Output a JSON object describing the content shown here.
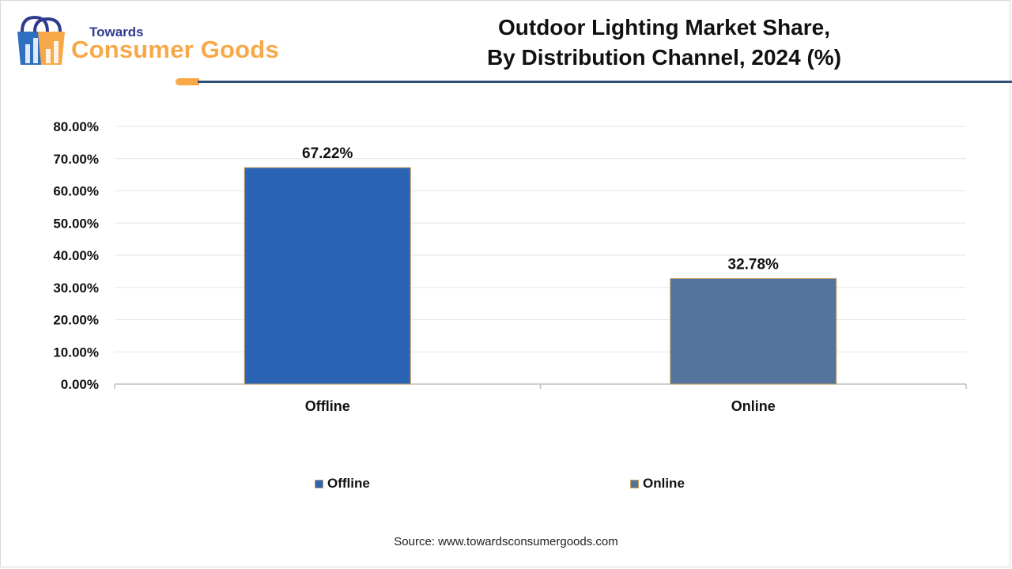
{
  "brand": {
    "line1": "Towards",
    "line2": "Consumer Goods"
  },
  "title": {
    "line1": "Outdoor Lighting Market Share,",
    "line2": "By Distribution Channel, 2024 (%)"
  },
  "source": "Source: www.towardsconsumergoods.com",
  "colors": {
    "offline": "#2b63b5",
    "online": "#54739d",
    "accent": "#f7a94a",
    "rule": "#2f4f73"
  },
  "chart_data": {
    "type": "bar",
    "categories": [
      "Offline",
      "Online"
    ],
    "values": [
      67.22,
      32.78
    ],
    "data_labels": [
      "67.22%",
      "32.78%"
    ],
    "ylim": [
      0,
      80
    ],
    "ytick_labels": [
      "0.00%",
      "10.00%",
      "20.00%",
      "30.00%",
      "40.00%",
      "50.00%",
      "60.00%",
      "70.00%",
      "80.00%"
    ],
    "legend": [
      "Offline",
      "Online"
    ],
    "legend_position": "bottom",
    "grid": true
  }
}
